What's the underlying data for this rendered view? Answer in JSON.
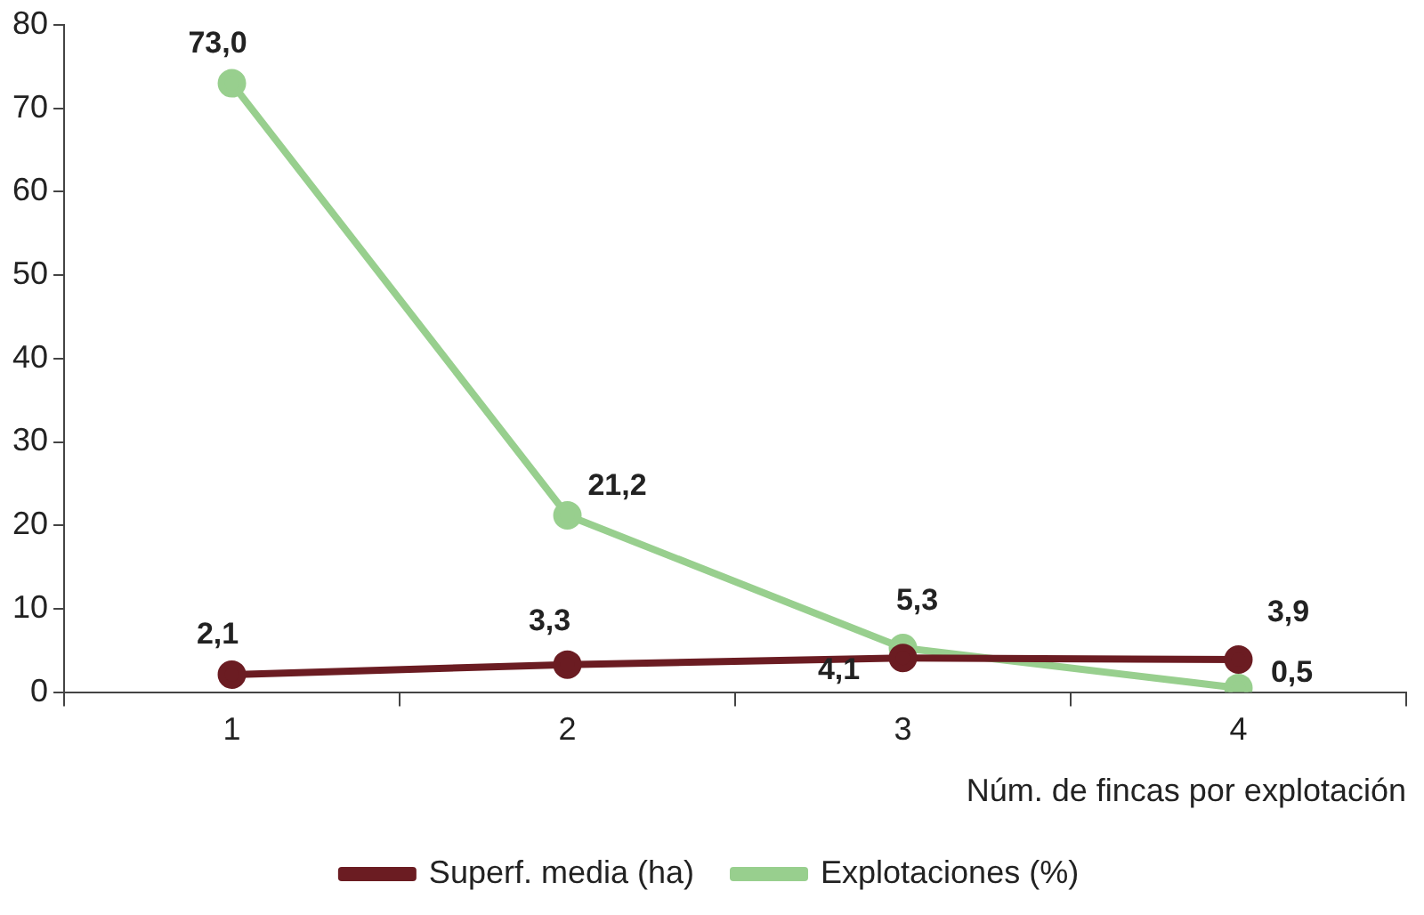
{
  "chart_data": {
    "type": "line",
    "xlabel": "Núm. de fincas por explotación",
    "categories": [
      "1",
      "2",
      "3",
      "4"
    ],
    "series": [
      {
        "name": "Superf. media (ha)",
        "color": "#6b1c22",
        "values": [
          2.1,
          3.3,
          4.1,
          3.9
        ],
        "value_labels": [
          "2,1",
          "3,3",
          "4,1",
          "3,9"
        ]
      },
      {
        "name": "Explotaciones (%)",
        "color": "#98cf8e",
        "values": [
          73.0,
          21.2,
          5.3,
          0.5
        ],
        "value_labels": [
          "73,0",
          "21,2",
          "5,3",
          "0,5"
        ]
      }
    ],
    "ylim": [
      0,
      80
    ],
    "yticks": [
      0,
      10,
      20,
      30,
      40,
      50,
      60,
      70,
      80
    ],
    "grid": false,
    "legend": "bottom",
    "marker": "circle",
    "line_style": "solid"
  }
}
